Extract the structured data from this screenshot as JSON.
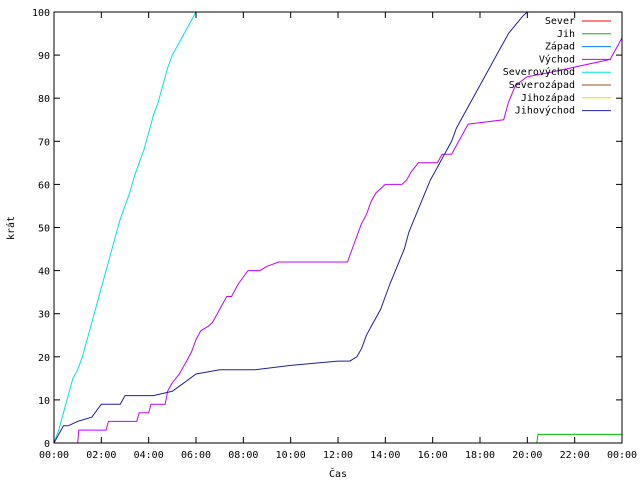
{
  "chart_data": {
    "type": "line",
    "title": "",
    "xlabel": "Čas",
    "ylabel": "krát",
    "xlim": [
      0,
      24
    ],
    "ylim": [
      0,
      100
    ],
    "x_ticks": [
      {
        "value": 0,
        "label": "00:00"
      },
      {
        "value": 2,
        "label": "02:00"
      },
      {
        "value": 4,
        "label": "04:00"
      },
      {
        "value": 6,
        "label": "06:00"
      },
      {
        "value": 8,
        "label": "08:00"
      },
      {
        "value": 10,
        "label": "10:00"
      },
      {
        "value": 12,
        "label": "12:00"
      },
      {
        "value": 14,
        "label": "14:00"
      },
      {
        "value": 16,
        "label": "16:00"
      },
      {
        "value": 18,
        "label": "18:00"
      },
      {
        "value": 20,
        "label": "20:00"
      },
      {
        "value": 22,
        "label": "22:00"
      },
      {
        "value": 24,
        "label": "00:00"
      }
    ],
    "y_ticks": [
      0,
      10,
      20,
      30,
      40,
      50,
      60,
      70,
      80,
      90,
      100
    ],
    "grid": false,
    "legend_position": "top-right",
    "series": [
      {
        "name": "Sever",
        "color": "#ff0000",
        "x": [],
        "y": []
      },
      {
        "name": "Jih",
        "color": "#00c000",
        "x": [
          0,
          20.4,
          20.45,
          24
        ],
        "y": [
          0,
          0,
          2,
          2
        ]
      },
      {
        "name": "Západ",
        "color": "#0080ff",
        "x": [],
        "y": []
      },
      {
        "name": "Východ",
        "color": "#c000ff",
        "x": [
          1.0,
          1.05,
          2.2,
          2.3,
          3.5,
          3.6,
          4.0,
          4.1,
          4.7,
          4.8,
          5.0,
          5.3,
          5.5,
          5.8,
          6.0,
          6.2,
          6.5,
          6.7,
          6.9,
          7.1,
          7.3,
          7.5,
          7.8,
          8.2,
          8.5,
          8.7,
          9.0,
          9.5,
          10.0,
          12.4,
          12.6,
          12.8,
          13.0,
          13.2,
          13.4,
          13.6,
          13.8,
          14.0,
          14.7,
          14.9,
          15.1,
          15.4,
          16.2,
          16.4,
          16.8,
          17.0,
          17.2,
          17.5,
          19.0,
          19.2,
          19.5,
          20.0,
          21.0,
          23.5,
          23.8,
          24.0
        ],
        "y": [
          0,
          3,
          3,
          5,
          5,
          7,
          7,
          9,
          9,
          12,
          14,
          16,
          18,
          21,
          24,
          26,
          27,
          28,
          30,
          32,
          34,
          34,
          37,
          40,
          40,
          40,
          41,
          42,
          42,
          42,
          45,
          48,
          51,
          53,
          56,
          58,
          59,
          60,
          60,
          61,
          63,
          65,
          65,
          67,
          67,
          69,
          71,
          74,
          75,
          79,
          83,
          85,
          86,
          89,
          92,
          94
        ]
      },
      {
        "name": "Severovýchod",
        "color": "#00e0e0",
        "x": [
          0,
          0.2,
          0.4,
          0.6,
          0.8,
          1.0,
          1.2,
          1.4,
          1.6,
          1.8,
          2.0,
          2.2,
          2.4,
          2.6,
          2.8,
          3.0,
          3.2,
          3.4,
          3.6,
          3.8,
          4.0,
          4.2,
          4.4,
          4.6,
          4.8,
          5.0,
          5.2,
          5.4,
          5.6,
          5.8,
          6.0,
          6.1
        ],
        "y": [
          0,
          3,
          7,
          11,
          15,
          17,
          20,
          24,
          28,
          32,
          36,
          40,
          44,
          48,
          52,
          55,
          58,
          62,
          65,
          68,
          72,
          76,
          79,
          83,
          87,
          90,
          92,
          94,
          96,
          98,
          100,
          100
        ]
      },
      {
        "name": "Severozápad",
        "color": "#a05020",
        "x": [],
        "y": []
      },
      {
        "name": "Jihozápad",
        "color": "#e0e000",
        "x": [],
        "y": []
      },
      {
        "name": "Jihovýchod",
        "color": "#2020a0",
        "x": [
          0,
          0.2,
          0.4,
          0.6,
          1.0,
          1.6,
          2.0,
          2.8,
          3.0,
          4.2,
          5.0,
          5.5,
          6.0,
          7.0,
          8.5,
          10.0,
          12.0,
          12.5,
          12.8,
          13.0,
          13.2,
          13.5,
          13.8,
          14.0,
          14.2,
          14.5,
          14.8,
          15.0,
          15.3,
          15.6,
          15.9,
          16.2,
          16.5,
          16.8,
          17.0,
          17.3,
          17.6,
          17.9,
          18.2,
          18.5,
          18.8,
          19.0,
          19.2,
          19.5,
          19.8,
          20.0,
          20.2
        ],
        "y": [
          0,
          2,
          4,
          4,
          5,
          6,
          9,
          9,
          11,
          11,
          12,
          14,
          16,
          17,
          17,
          18,
          19,
          19,
          20,
          22,
          25,
          28,
          31,
          34,
          37,
          41,
          45,
          49,
          53,
          57,
          61,
          64,
          67,
          70,
          73,
          76,
          79,
          82,
          85,
          88,
          91,
          93,
          95,
          97,
          99,
          100,
          100
        ]
      }
    ]
  }
}
